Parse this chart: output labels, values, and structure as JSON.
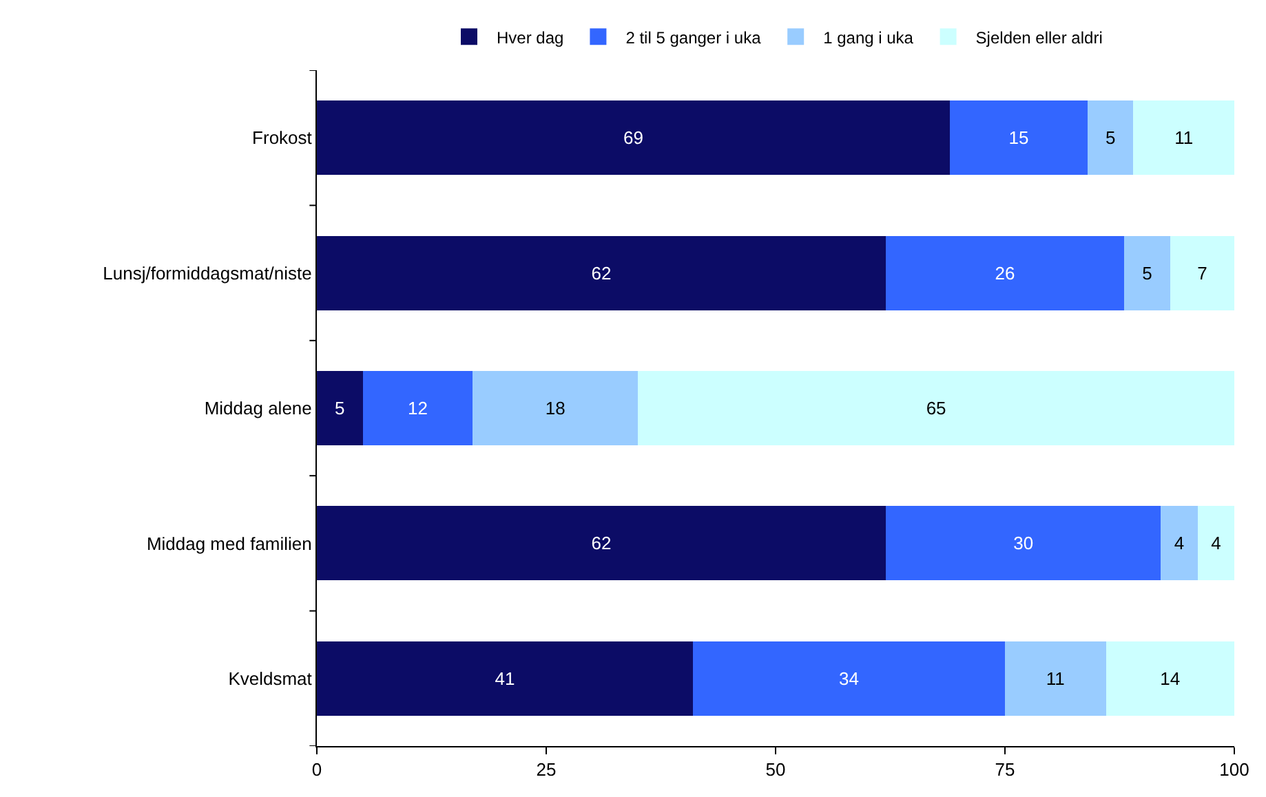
{
  "chart_data": {
    "type": "bar",
    "orientation": "horizontal",
    "stacked": true,
    "data_labels": true,
    "legend": "top",
    "categories": [
      "Frokost",
      "Lunsj/formiddagsmat/niste",
      "Middag alene",
      "Middag med familien",
      "Kveldsmat"
    ],
    "series": [
      {
        "name": "Hver dag",
        "color": "#0c0c66",
        "values": [
          69,
          62,
          5,
          62,
          41
        ]
      },
      {
        "name": "2 til 5 ganger i uka",
        "color": "#3366ff",
        "values": [
          15,
          26,
          12,
          30,
          34
        ]
      },
      {
        "name": "1 gang i uka",
        "color": "#99ccff",
        "values": [
          5,
          5,
          18,
          4,
          11
        ]
      },
      {
        "name": "Sjelden eller aldri",
        "color": "#ccffff",
        "values": [
          11,
          7,
          65,
          4,
          14
        ]
      }
    ],
    "xlim": [
      0,
      100
    ],
    "xticks": [
      0,
      25,
      50,
      75,
      100
    ]
  }
}
